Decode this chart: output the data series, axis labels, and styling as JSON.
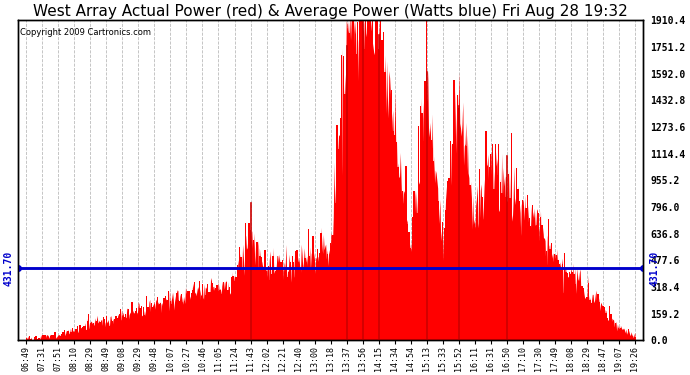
{
  "title": "West Array Actual Power (red) & Average Power (Watts blue) Fri Aug 28 19:32",
  "copyright": "Copyright 2009 Cartronics.com",
  "ylabel_right_values": [
    0.0,
    159.2,
    318.4,
    477.6,
    636.8,
    796.0,
    955.2,
    1114.4,
    1273.6,
    1432.8,
    1592.0,
    1751.2,
    1910.4
  ],
  "ymax": 1910.4,
  "ymin": 0.0,
  "average_line_y": 431.7,
  "average_label": "431.70",
  "bar_color": "#FF0000",
  "line_color": "#0000CC",
  "background_color": "#FFFFFF",
  "grid_color": "#AAAAAA",
  "title_fontsize": 11,
  "time_labels": [
    "06:49",
    "07:31",
    "07:51",
    "08:10",
    "08:29",
    "08:49",
    "09:08",
    "09:29",
    "09:48",
    "10:07",
    "10:27",
    "10:46",
    "11:05",
    "11:24",
    "11:43",
    "12:02",
    "12:21",
    "12:40",
    "13:00",
    "13:18",
    "13:37",
    "13:56",
    "14:15",
    "14:34",
    "14:54",
    "15:13",
    "15:33",
    "15:52",
    "16:11",
    "16:31",
    "16:50",
    "17:10",
    "17:30",
    "17:49",
    "18:08",
    "18:29",
    "18:47",
    "19:07",
    "19:26"
  ],
  "power_values": [
    8,
    15,
    30,
    55,
    100,
    120,
    140,
    170,
    200,
    230,
    260,
    290,
    310,
    340,
    580,
    380,
    440,
    460,
    500,
    560,
    1760,
    1910,
    1820,
    1200,
    580,
    1480,
    560,
    1380,
    700,
    1050,
    900,
    800,
    650,
    500,
    380,
    280,
    170,
    80,
    20
  ],
  "figsize": [
    6.9,
    3.75
  ],
  "dpi": 100
}
